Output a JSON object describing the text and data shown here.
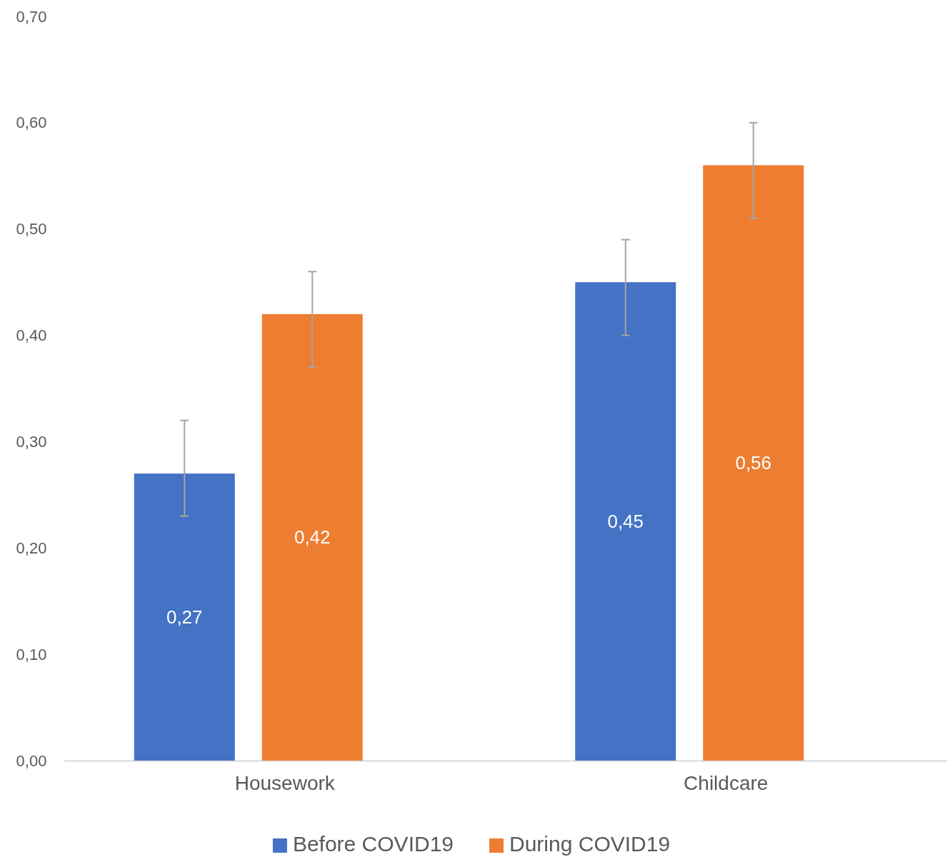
{
  "chart_data": {
    "type": "bar",
    "categories": [
      "Housework",
      "Childcare"
    ],
    "series": [
      {
        "name": "Before COVID19",
        "color": "#4472c4",
        "values": [
          0.27,
          0.45
        ],
        "errors": [
          [
            0.23,
            0.32
          ],
          [
            0.4,
            0.49
          ]
        ],
        "value_labels": [
          "0,27",
          "0,45"
        ]
      },
      {
        "name": "During COVID19",
        "color": "#ed7d31",
        "values": [
          0.42,
          0.56
        ],
        "errors": [
          [
            0.37,
            0.46
          ],
          [
            0.51,
            0.6
          ]
        ],
        "value_labels": [
          "0,42",
          "0,56"
        ]
      }
    ],
    "ylim": [
      0,
      0.7
    ],
    "yticks": [
      {
        "value": 0,
        "label": "0,00"
      },
      {
        "value": 0.1,
        "label": "0,10"
      },
      {
        "value": 0.2,
        "label": "0,20"
      },
      {
        "value": 0.3,
        "label": "0,30"
      },
      {
        "value": 0.4,
        "label": "0,40"
      },
      {
        "value": 0.5,
        "label": "0,50"
      },
      {
        "value": 0.6,
        "label": "0,60"
      },
      {
        "value": 0.7,
        "label": "0,70"
      }
    ],
    "grid": false,
    "legend": "bottom"
  }
}
